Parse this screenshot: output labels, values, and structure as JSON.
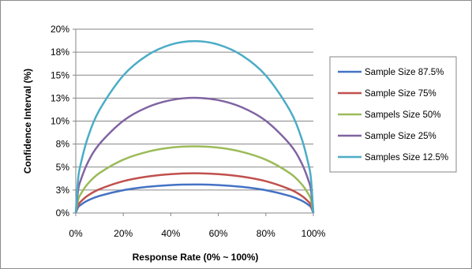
{
  "chart_data": {
    "type": "line",
    "title": "",
    "xlabel": "Response Rate (0% ~ 100%)",
    "ylabel": "Confidence Interval (%)",
    "xlim": [
      0,
      100
    ],
    "ylim": [
      0,
      20
    ],
    "x_ticks": [
      "0%",
      "20%",
      "40%",
      "60%",
      "80%",
      "100%"
    ],
    "y_ticks": [
      "0%",
      "3%",
      "5%",
      "8%",
      "10%",
      "13%",
      "15%",
      "18%",
      "20%"
    ],
    "grid": "horizontal",
    "legend": "right",
    "x": [
      0,
      1,
      2,
      5,
      10,
      20,
      30,
      40,
      50,
      60,
      70,
      80,
      90,
      95,
      98,
      99,
      100
    ],
    "series": [
      {
        "name": "Sample Size 87.5%",
        "color": "#4472c4",
        "values": [
          0,
          0.62,
          0.87,
          1.35,
          1.86,
          2.48,
          2.84,
          3.04,
          3.1,
          3.04,
          2.84,
          2.48,
          1.86,
          1.35,
          0.87,
          0.62,
          0
        ]
      },
      {
        "name": "Sample Size 75%",
        "color": "#c0504d",
        "values": [
          0,
          0.86,
          1.21,
          1.88,
          2.59,
          3.46,
          3.96,
          4.23,
          4.32,
          4.23,
          3.96,
          3.46,
          2.59,
          1.88,
          1.21,
          0.86,
          0
        ]
      },
      {
        "name": "Sampels Size 50%",
        "color": "#9bbb59",
        "values": [
          0,
          1.44,
          2.03,
          3.16,
          4.35,
          5.8,
          6.65,
          7.11,
          7.25,
          7.11,
          6.65,
          5.8,
          4.35,
          3.16,
          2.03,
          1.44,
          0
        ]
      },
      {
        "name": "Sample Size 25%",
        "color": "#8064a2",
        "values": [
          0,
          2.49,
          3.51,
          5.46,
          7.52,
          10.03,
          11.49,
          12.28,
          12.53,
          12.28,
          11.49,
          10.03,
          7.52,
          5.46,
          3.51,
          2.49,
          0
        ]
      },
      {
        "name": "Samples Size 12.5%",
        "color": "#4bacc6",
        "values": [
          0,
          3.72,
          5.24,
          8.15,
          11.22,
          14.96,
          17.14,
          18.32,
          18.7,
          18.32,
          17.14,
          14.96,
          11.22,
          8.15,
          5.24,
          3.72,
          0
        ]
      }
    ]
  }
}
